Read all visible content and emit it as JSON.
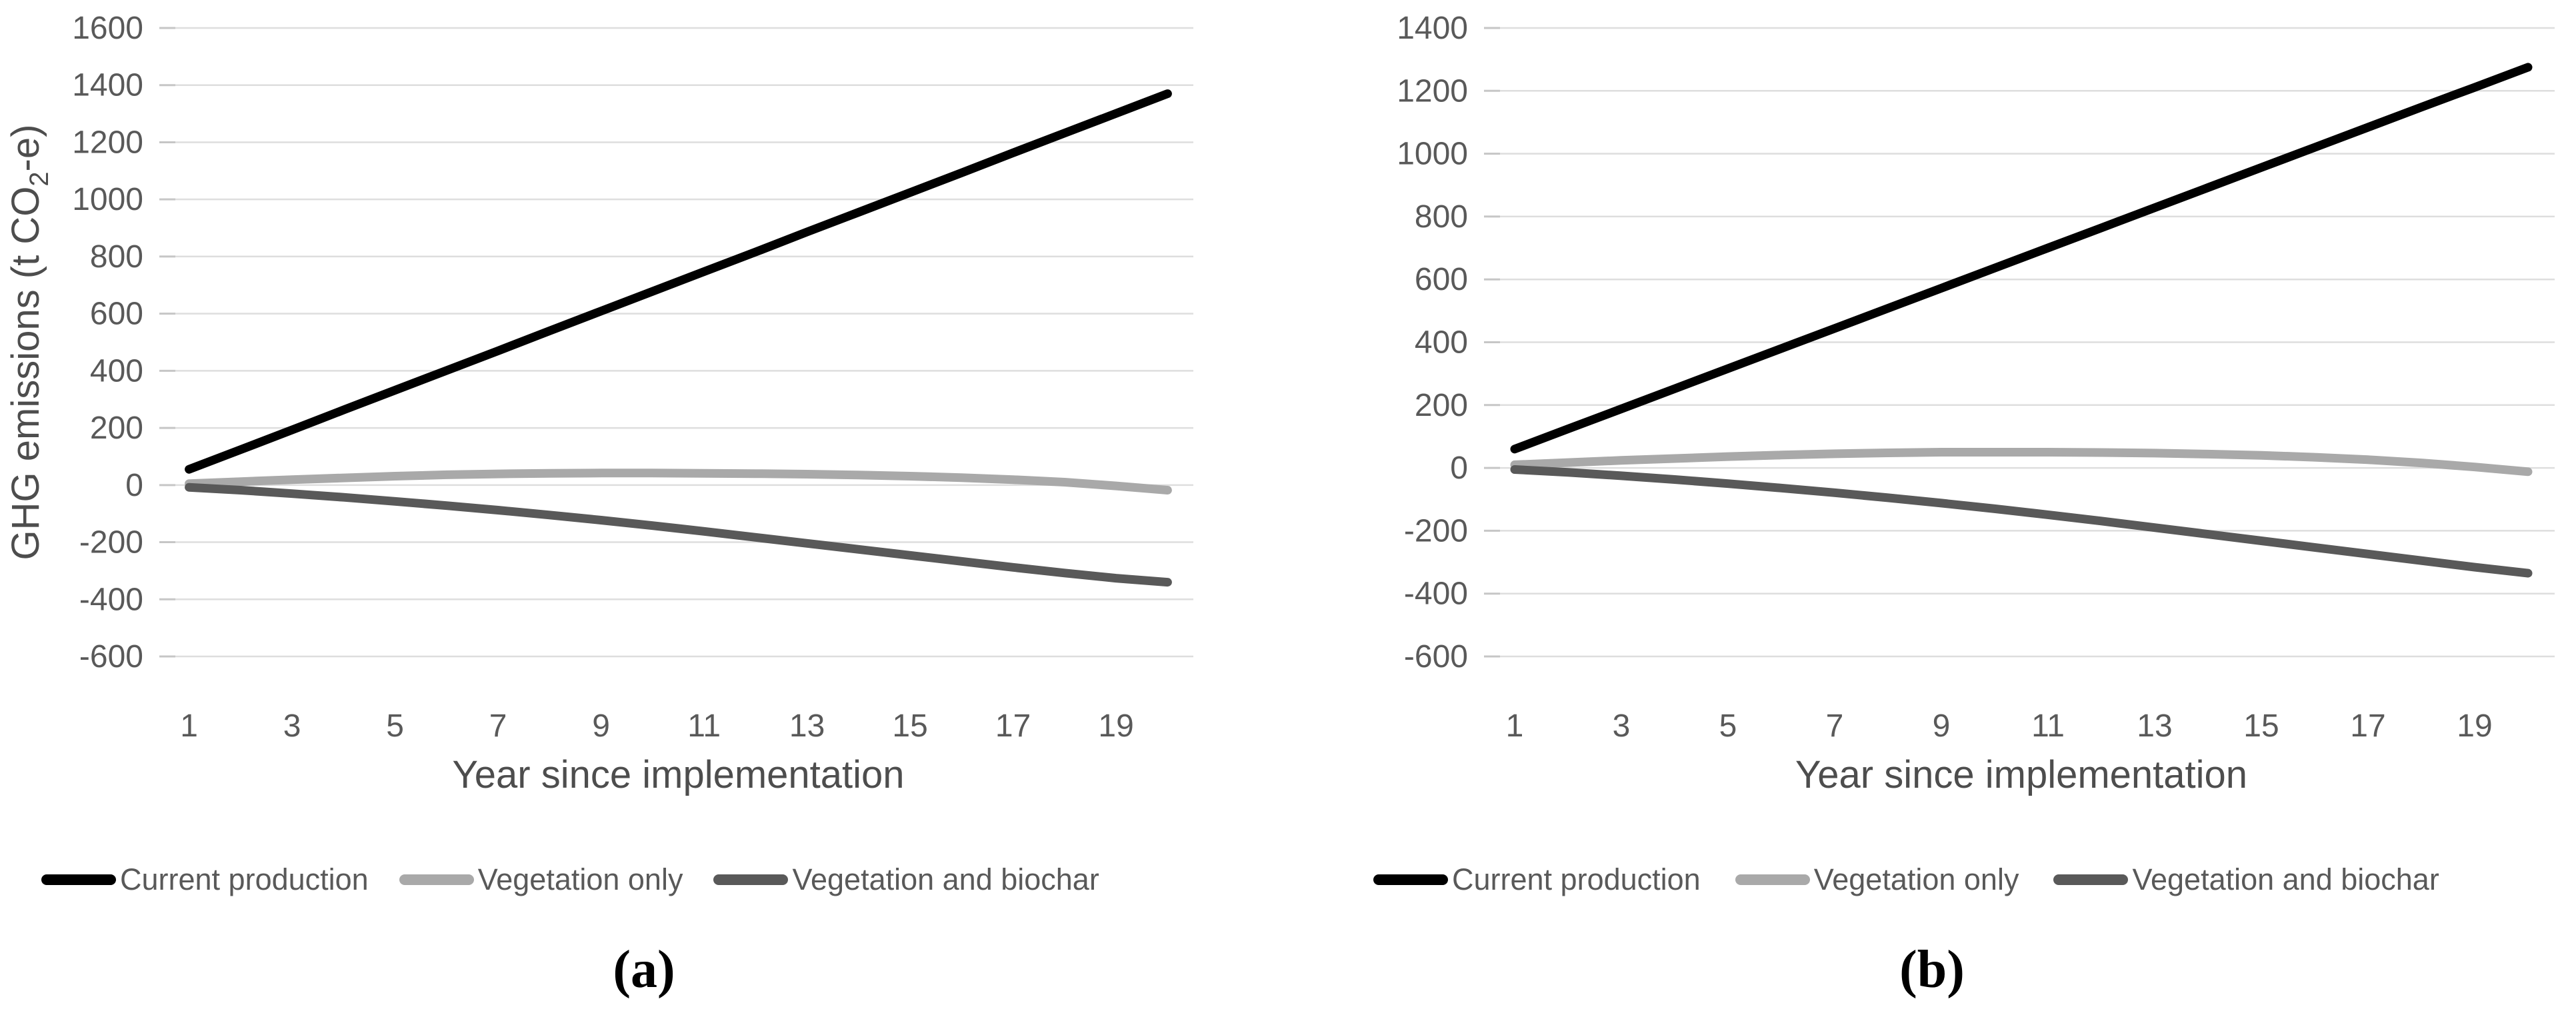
{
  "panels": [
    {
      "caption": "(a)"
    },
    {
      "caption": "(b)"
    }
  ],
  "legend_items": [
    {
      "label": "Current production",
      "color": "#000000"
    },
    {
      "label": "Vegetation only",
      "color": "#a9a9a9"
    },
    {
      "label": "Vegetation and biochar",
      "color": "#595959"
    }
  ],
  "chart_data": [
    {
      "type": "line",
      "panel": "a",
      "xlabel": "Year since implementation",
      "ylabel": "GHG emissions (t CO2-e)",
      "ylabel_parts": {
        "pre": "GHG emissions (t CO",
        "sub": "2",
        "post": "-e)"
      },
      "x": [
        1,
        2,
        3,
        4,
        5,
        6,
        7,
        8,
        9,
        10,
        11,
        12,
        13,
        14,
        15,
        16,
        17,
        18,
        19,
        20
      ],
      "xtick_labels": [
        "1",
        "3",
        "5",
        "7",
        "9",
        "11",
        "13",
        "15",
        "17",
        "19"
      ],
      "ylim": [
        -600,
        1600
      ],
      "ytick_step": 200,
      "grid": true,
      "legend_position": "bottom",
      "series": [
        {
          "name": "Current production",
          "color": "#000000",
          "values": [
            55,
            124,
            193,
            263,
            332,
            401,
            470,
            540,
            609,
            678,
            747,
            816,
            886,
            955,
            1024,
            1093,
            1163,
            1232,
            1301,
            1370
          ]
        },
        {
          "name": "Vegetation only",
          "color": "#a9a9a9",
          "values": [
            5,
            12,
            19,
            25,
            31,
            36,
            39,
            41,
            42,
            42,
            41,
            40,
            38,
            35,
            31,
            26,
            19,
            10,
            -3,
            -18
          ]
        },
        {
          "name": "Vegetation and biochar",
          "color": "#595959",
          "values": [
            -8,
            -18,
            -30,
            -43,
            -57,
            -72,
            -88,
            -105,
            -123,
            -142,
            -162,
            -183,
            -204,
            -225,
            -246,
            -267,
            -288,
            -308,
            -326,
            -340
          ]
        }
      ]
    },
    {
      "type": "line",
      "panel": "b",
      "xlabel": "Year since implementation",
      "ylabel": "",
      "x": [
        1,
        2,
        3,
        4,
        5,
        6,
        7,
        8,
        9,
        10,
        11,
        12,
        13,
        14,
        15,
        16,
        17,
        18,
        19,
        20
      ],
      "xtick_labels": [
        "1",
        "3",
        "5",
        "7",
        "9",
        "11",
        "13",
        "15",
        "17",
        "19"
      ],
      "ylim": [
        -600,
        1400
      ],
      "ytick_step": 200,
      "grid": true,
      "legend_position": "bottom",
      "series": [
        {
          "name": "Current production",
          "color": "#000000",
          "values": [
            60,
            124,
            188,
            252,
            316,
            380,
            444,
            508,
            572,
            636,
            700,
            764,
            828,
            892,
            956,
            1020,
            1084,
            1148,
            1211,
            1275
          ]
        },
        {
          "name": "Vegetation only",
          "color": "#a9a9a9",
          "values": [
            10,
            17,
            24,
            30,
            36,
            41,
            45,
            48,
            50,
            50,
            50,
            49,
            47,
            44,
            40,
            34,
            26,
            16,
            3,
            -12
          ]
        },
        {
          "name": "Vegetation and biochar",
          "color": "#595959",
          "values": [
            -5,
            -14,
            -25,
            -37,
            -50,
            -64,
            -79,
            -95,
            -112,
            -130,
            -149,
            -169,
            -190,
            -211,
            -232,
            -253,
            -274,
            -295,
            -316,
            -335
          ]
        }
      ]
    }
  ],
  "style": {
    "grid_color": "#dedede",
    "tick_stub_color": "#c6c6c6",
    "tick_text_color": "#595959",
    "axis_title_color": "#4d4d4d"
  }
}
